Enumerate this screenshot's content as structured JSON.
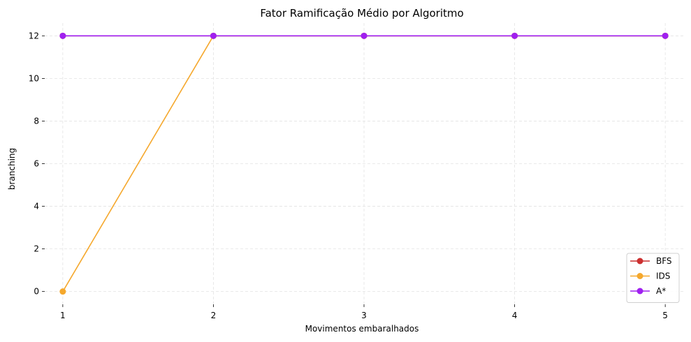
{
  "chart_data": {
    "type": "line",
    "title": "Fator Ramificação Médio por Algoritmo",
    "xlabel": "Movimentos embaralhados",
    "ylabel": "branching",
    "x": [
      1,
      2,
      3,
      4,
      5
    ],
    "x_tick_labels": [
      "1",
      "2",
      "3",
      "4",
      "5"
    ],
    "y_ticks": [
      0,
      2,
      4,
      6,
      8,
      10,
      12
    ],
    "y_tick_labels": [
      "0",
      "2",
      "4",
      "6",
      "8",
      "10",
      "12"
    ],
    "xlim": [
      0.88,
      5.12
    ],
    "ylim": [
      -0.6,
      12.6
    ],
    "grid": true,
    "legend_position": "bottom-right",
    "series": [
      {
        "name": "BFS",
        "color": "#cc2f2f",
        "values": [
          12,
          12,
          12,
          12,
          12
        ]
      },
      {
        "name": "IDS",
        "color": "#f5a82d",
        "values": [
          0,
          12,
          12,
          12,
          12
        ]
      },
      {
        "name": "A*",
        "color": "#a020f0",
        "values": [
          12,
          12,
          12,
          12,
          12
        ]
      }
    ]
  }
}
